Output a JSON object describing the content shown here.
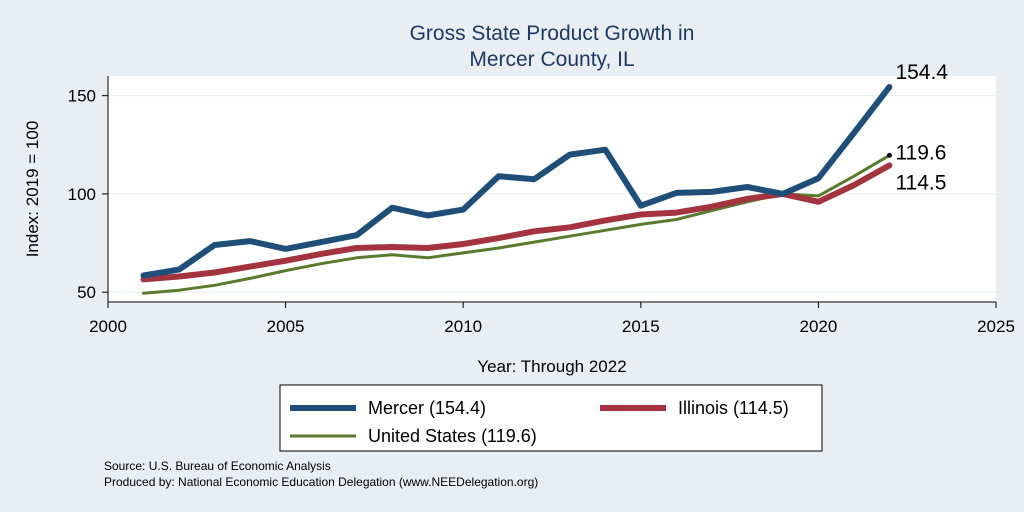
{
  "chart_data": {
    "type": "line",
    "title": [
      "Gross State Product Growth in",
      "Mercer County, IL"
    ],
    "xlabel": "Year: Through 2022",
    "ylabel": "Index: 2019 = 100",
    "xlim": [
      2000,
      2025
    ],
    "ylim": [
      45,
      160
    ],
    "x_ticks": [
      2000,
      2005,
      2010,
      2015,
      2020,
      2025
    ],
    "y_ticks": [
      50,
      100,
      150
    ],
    "grid": "horizontal",
    "legend_position": "bottom",
    "series": [
      {
        "name": "Mercer",
        "legend_label": "Mercer  (154.4)",
        "color": "#1f4e79",
        "end_label": "154.4",
        "x": [
          2001,
          2002,
          2003,
          2004,
          2005,
          2006,
          2007,
          2008,
          2009,
          2010,
          2011,
          2012,
          2013,
          2014,
          2015,
          2016,
          2017,
          2018,
          2019,
          2020,
          2021,
          2022
        ],
        "values": [
          58.5,
          61.5,
          74,
          76,
          72,
          75.5,
          79,
          93,
          89,
          92,
          109,
          107.5,
          120,
          122.5,
          94,
          100.5,
          101,
          103.5,
          100,
          108,
          131,
          154.4
        ]
      },
      {
        "name": "Illinois",
        "legend_label": "Illinois (114.5)",
        "color": "#a3343f",
        "end_label": "114.5",
        "x": [
          2001,
          2002,
          2003,
          2004,
          2005,
          2006,
          2007,
          2008,
          2009,
          2010,
          2011,
          2012,
          2013,
          2014,
          2015,
          2016,
          2017,
          2018,
          2019,
          2020,
          2021,
          2022
        ],
        "values": [
          56.5,
          58,
          60,
          63,
          66,
          69.5,
          72.5,
          73,
          72.5,
          74.5,
          77.5,
          81,
          83,
          86.5,
          89.5,
          90.5,
          93.5,
          97.5,
          100,
          96,
          104.5,
          114.5
        ]
      },
      {
        "name": "United States",
        "legend_label": "United States (119.6)",
        "color": "#5a7a2e",
        "end_label": "119.6",
        "x": [
          2001,
          2002,
          2003,
          2004,
          2005,
          2006,
          2007,
          2008,
          2009,
          2010,
          2011,
          2012,
          2013,
          2014,
          2015,
          2016,
          2017,
          2018,
          2019,
          2020,
          2021,
          2022
        ],
        "values": [
          49.5,
          51,
          53.5,
          57,
          61,
          64.5,
          67.5,
          69,
          67.5,
          70,
          72.5,
          75.5,
          78.5,
          81.5,
          84.5,
          87,
          91.5,
          96,
          100,
          99,
          109,
          119.6
        ]
      }
    ]
  },
  "notes": {
    "source": "Source: U.S. Bureau of Economic Analysis",
    "produced_by": "Produced by: National Economic Education Delegation (www.NEEDelegation.org)"
  }
}
